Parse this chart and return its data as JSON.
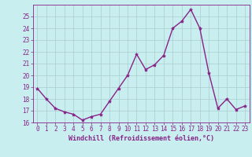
{
  "x": [
    0,
    1,
    2,
    3,
    4,
    5,
    6,
    7,
    8,
    9,
    10,
    11,
    12,
    13,
    14,
    15,
    16,
    17,
    18,
    19,
    20,
    21,
    22,
    23
  ],
  "y": [
    18.9,
    18.0,
    17.2,
    16.9,
    16.7,
    16.2,
    16.5,
    16.7,
    17.8,
    18.9,
    20.0,
    21.8,
    20.5,
    20.9,
    21.7,
    24.0,
    24.6,
    25.6,
    24.0,
    20.2,
    17.2,
    18.0,
    17.1,
    17.4
  ],
  "line_color": "#882288",
  "marker": "*",
  "marker_size": 3,
  "bg_color": "#c8eef0",
  "grid_color": "#aacccc",
  "xlabel": "Windchill (Refroidissement éolien,°C)",
  "ylim": [
    16,
    26
  ],
  "xlim": [
    -0.5,
    23.5
  ],
  "yticks": [
    16,
    17,
    18,
    19,
    20,
    21,
    22,
    23,
    24,
    25
  ],
  "xticks": [
    0,
    1,
    2,
    3,
    4,
    5,
    6,
    7,
    8,
    9,
    10,
    11,
    12,
    13,
    14,
    15,
    16,
    17,
    18,
    19,
    20,
    21,
    22,
    23
  ],
  "tick_color": "#882288",
  "label_color": "#882288",
  "spine_color": "#882288",
  "line_width": 1.0,
  "font_family": "monospace",
  "tick_fontsize": 5.5,
  "xlabel_fontsize": 6.0,
  "xlabel_fontweight": "bold"
}
